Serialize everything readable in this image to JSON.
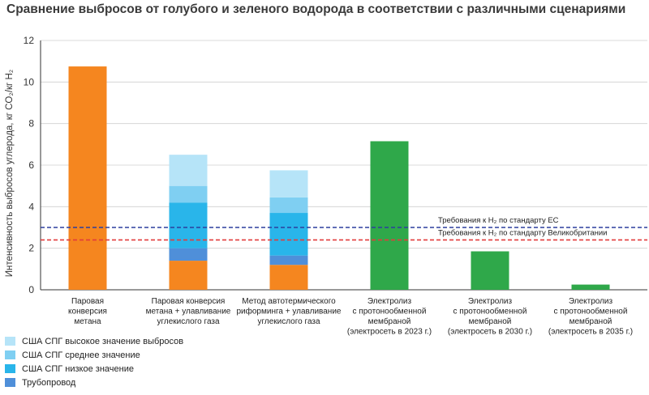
{
  "title": "Сравнение выбросов от голубого и зеленого водорода в соответствии с различными сценариями",
  "chart_data": {
    "type": "bar",
    "stacked": true,
    "ylabel": "Интенсивность выбросов углерода, кг CO₂/кг H₂",
    "ylim": [
      0,
      12
    ],
    "yticks": [
      0,
      2,
      4,
      6,
      8,
      10,
      12
    ],
    "grid": true,
    "legend_placement": "bottom-left",
    "categories": [
      [
        "Паровая",
        "конверсия",
        "метана"
      ],
      [
        "Паровая конверсия",
        "метана + улавливание",
        "углекислого газа"
      ],
      [
        "Метод автотермического",
        "риформинга + улавливание",
        "углекислого газа"
      ],
      [
        "Электролиз",
        "с протонообменной",
        "мембраной",
        "(электросеть в 2023 г.)"
      ],
      [
        "Электролиз",
        "с протонообменной",
        "мембраной",
        "(электросеть в 2030 г.)"
      ],
      [
        "Электролиз",
        "с протонообменной",
        "мембраной",
        "(электросеть в 2035 г.)"
      ]
    ],
    "bars": [
      {
        "segments": [
          {
            "value": 10.75,
            "color": "#f5861f"
          }
        ]
      },
      {
        "segments": [
          {
            "value": 1.4,
            "color": "#f5861f"
          },
          {
            "value": 0.6,
            "color": "#4f8fd9",
            "series": "Трубопровод"
          },
          {
            "value": 2.2,
            "color": "#29b5ea",
            "series": "США СПГ низкое значение"
          },
          {
            "value": 0.8,
            "color": "#7fcff2",
            "series": "США СПГ среднее значение"
          },
          {
            "value": 1.5,
            "color": "#b6e4f8",
            "series": "США СПГ высокое значение выбросов"
          }
        ]
      },
      {
        "segments": [
          {
            "value": 1.2,
            "color": "#f5861f"
          },
          {
            "value": 0.45,
            "color": "#4f8fd9",
            "series": "Трубопровод"
          },
          {
            "value": 2.05,
            "color": "#29b5ea",
            "series": "США СПГ низкое значение"
          },
          {
            "value": 0.75,
            "color": "#7fcff2",
            "series": "США СПГ среднее значение"
          },
          {
            "value": 1.3,
            "color": "#b6e4f8",
            "series": "США СПГ высокое значение выбросов"
          }
        ]
      },
      {
        "segments": [
          {
            "value": 7.15,
            "color": "#2fa84a"
          }
        ]
      },
      {
        "segments": [
          {
            "value": 1.85,
            "color": "#2fa84a"
          }
        ]
      },
      {
        "segments": [
          {
            "value": 0.25,
            "color": "#2fa84a"
          }
        ]
      }
    ],
    "reference_lines": [
      {
        "value": 3.0,
        "color": "#2c3e9e",
        "label": "Требования к H₂ по стандарту ЕС"
      },
      {
        "value": 2.4,
        "color": "#e23b3b",
        "label": "Требования к H₂ по стандарту Великобритании"
      }
    ],
    "legend": [
      {
        "label": "США СПГ высокое значение выбросов",
        "color": "#b6e4f8"
      },
      {
        "label": "США СПГ среднее значение",
        "color": "#7fcff2"
      },
      {
        "label": "США СПГ низкое значение",
        "color": "#29b5ea"
      },
      {
        "label": "Трубопровод",
        "color": "#4f8fd9"
      }
    ]
  }
}
